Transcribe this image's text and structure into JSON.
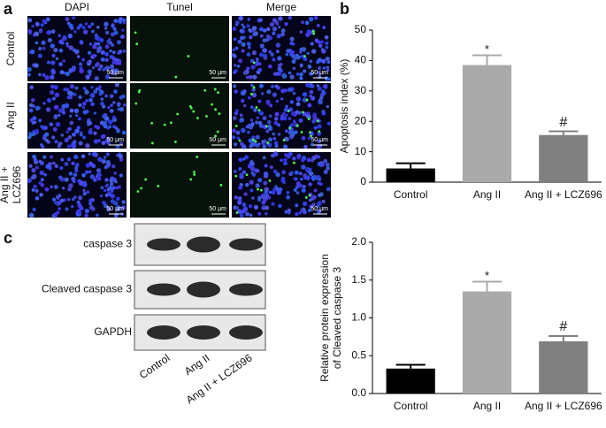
{
  "panels": {
    "a": "a",
    "b": "b",
    "c": "c"
  },
  "microscopy": {
    "columns": [
      "DAPI",
      "Tunel",
      "Merge"
    ],
    "row_labels": [
      [
        "Control"
      ],
      [
        "Ang II"
      ],
      [
        "Ang II +",
        "LCZ696"
      ]
    ],
    "scale_bar": "50 μm"
  },
  "blot": {
    "rows": [
      "caspase 3",
      "Cleaved caspase 3",
      "GAPDH"
    ],
    "lanes": [
      "Control",
      "Ang II",
      "Ang II + LCZ696"
    ]
  },
  "chart_data": [
    {
      "type": "bar",
      "ylabel": [
        "Apoptosis index (%)"
      ],
      "categories": [
        "Control",
        "Ang II",
        "Ang II + LCZ696"
      ],
      "values": [
        4.5,
        38.5,
        15.5
      ],
      "errors": [
        1.7,
        3.2,
        1.2
      ],
      "annotations": [
        null,
        "*",
        "#"
      ],
      "colors": [
        "#000000",
        "#aaaaaa",
        "#808080"
      ],
      "ylim": [
        0,
        50
      ],
      "yticks": [
        0,
        10,
        20,
        30,
        40,
        50
      ]
    },
    {
      "type": "bar",
      "ylabel": [
        "Relative protein expression",
        "of Cleaved caspase 3"
      ],
      "categories": [
        "Control",
        "Ang II",
        "Ang II + LCZ696"
      ],
      "values": [
        0.33,
        1.35,
        0.69
      ],
      "errors": [
        0.05,
        0.13,
        0.07
      ],
      "annotations": [
        null,
        "*",
        "#"
      ],
      "colors": [
        "#000000",
        "#aaaaaa",
        "#808080"
      ],
      "ylim": [
        0,
        2
      ],
      "yticks": [
        {
          "value": 0,
          "label": "0.0"
        },
        0.5,
        {
          "value": 1,
          "label": "1.0"
        },
        1.5,
        {
          "value": 2,
          "label": "2.0"
        }
      ]
    }
  ]
}
